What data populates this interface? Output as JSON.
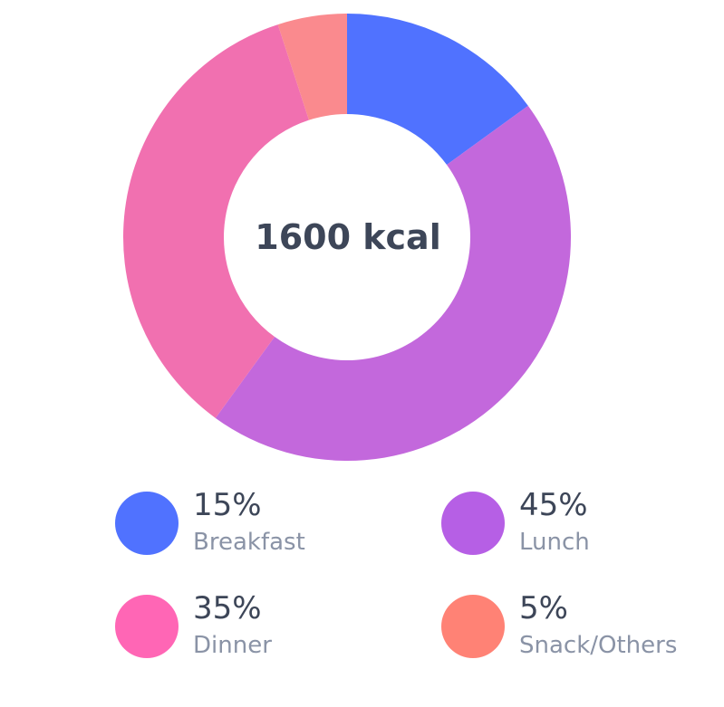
{
  "chart_data": {
    "type": "pie",
    "title": "",
    "center_label": "1600 kcal",
    "categories": [
      "Breakfast",
      "Lunch",
      "Dinner",
      "Snack/Others"
    ],
    "values": [
      15,
      45,
      35,
      5
    ],
    "labels": [
      "15%",
      "45%",
      "35%",
      "5%"
    ],
    "slice_colors": [
      "#5072ff",
      "#c368dc",
      "#f170b0",
      "#fa8a8e"
    ],
    "legend_colors": [
      "#5072ff",
      "#b65fe5",
      "#ff66b5",
      "#ff8275"
    ],
    "legend_placement": "bottom",
    "grid": false
  }
}
